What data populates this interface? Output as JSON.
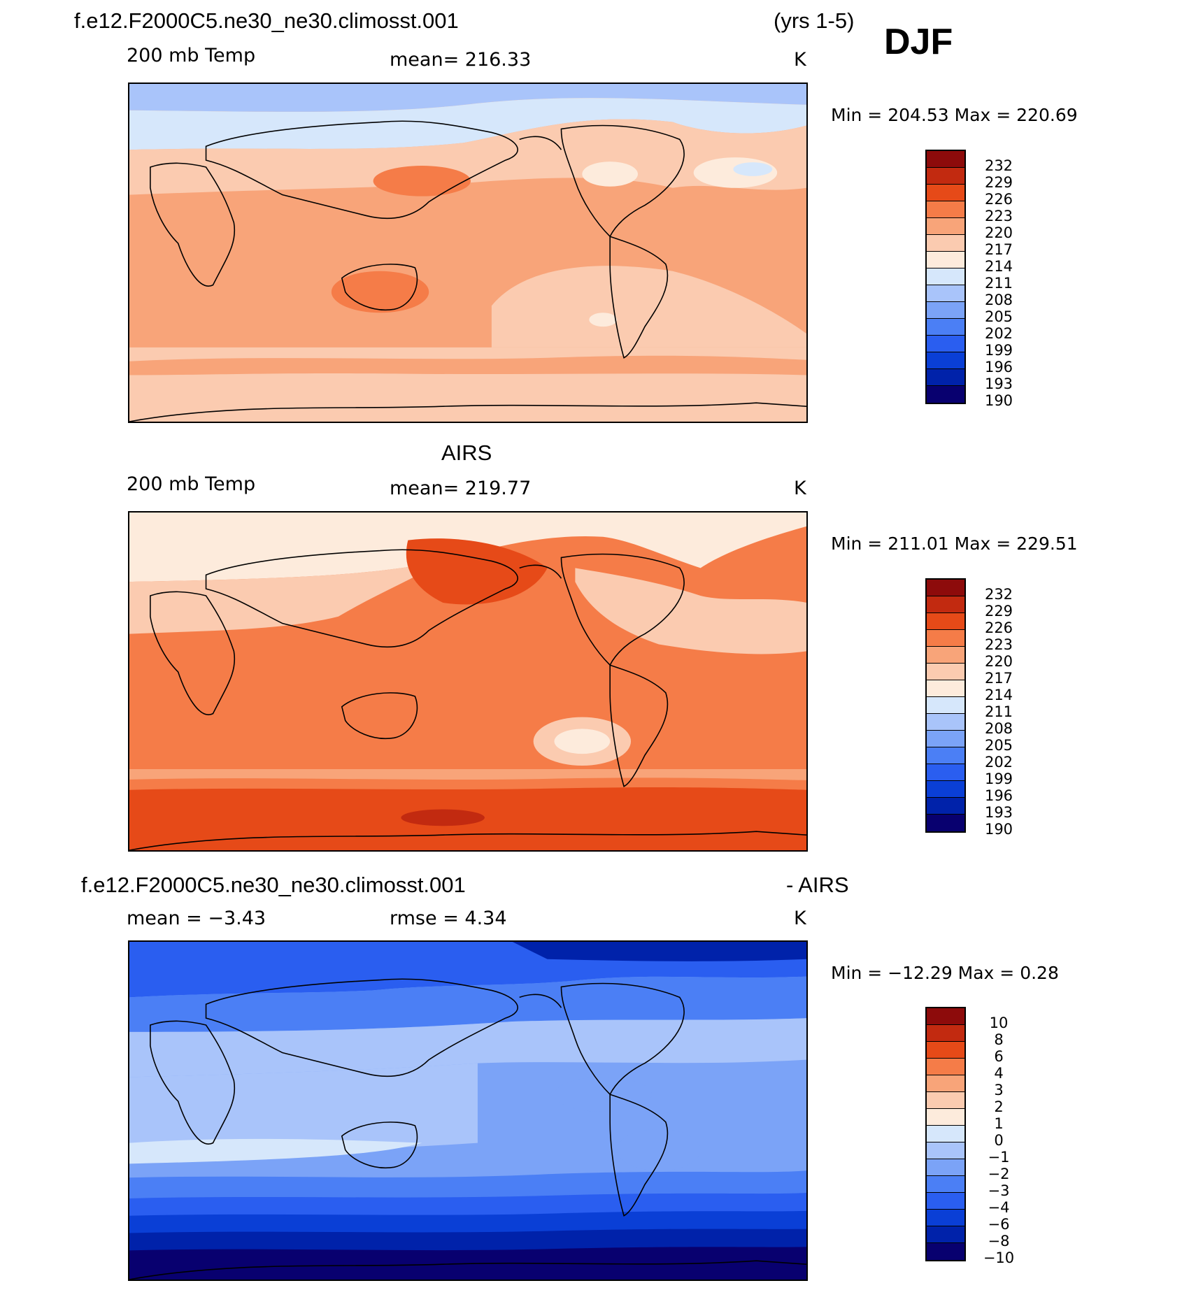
{
  "header": {
    "case_name": "f.e12.F2000C5.ne30_ne30.climosst.001",
    "years": "(yrs 1-5)",
    "season": "DJF"
  },
  "colors": {
    "temp_scale": [
      "#08006f",
      "#0022aa",
      "#0a3fd6",
      "#2a5ef0",
      "#4b7ff5",
      "#7ba3f7",
      "#a9c4fa",
      "#d6e7fb",
      "#fdebdc",
      "#fbcbb0",
      "#f8a479",
      "#f57c48",
      "#e64a18",
      "#c22a10",
      "#8d0b0b"
    ],
    "coastline": "#000000"
  },
  "panels": [
    {
      "name": "model",
      "variable": "200 mb Temp",
      "stat_text": "mean=  216.33",
      "units": "K",
      "minmax": "Min  =  204.53  Max  =  220.69",
      "levels": [
        "232",
        "229",
        "226",
        "223",
        "220",
        "217",
        "214",
        "211",
        "208",
        "205",
        "202",
        "199",
        "196",
        "193",
        "190"
      ]
    },
    {
      "name": "obs",
      "title": "AIRS",
      "variable": "200 mb Temp",
      "stat_text": "mean=  219.77",
      "units": "K",
      "minmax": "Min  =  211.01  Max  =  229.51",
      "levels": [
        "232",
        "229",
        "226",
        "223",
        "220",
        "217",
        "214",
        "211",
        "208",
        "205",
        "202",
        "199",
        "196",
        "193",
        "190"
      ]
    },
    {
      "name": "difference",
      "title_left": "f.e12.F2000C5.ne30_ne30.climosst.001",
      "title_right": "- AIRS",
      "mean_text": "mean  =   −3.43",
      "rmse_text": "rmse  =     4.34",
      "units": "K",
      "minmax": "Min  =  −12.29  Max  =      0.28",
      "levels": [
        "10",
        "8",
        "6",
        "4",
        "3",
        "2",
        "1",
        "0",
        "−1",
        "−2",
        "−3",
        "−4",
        "−6",
        "−8",
        "−10"
      ]
    }
  ]
}
